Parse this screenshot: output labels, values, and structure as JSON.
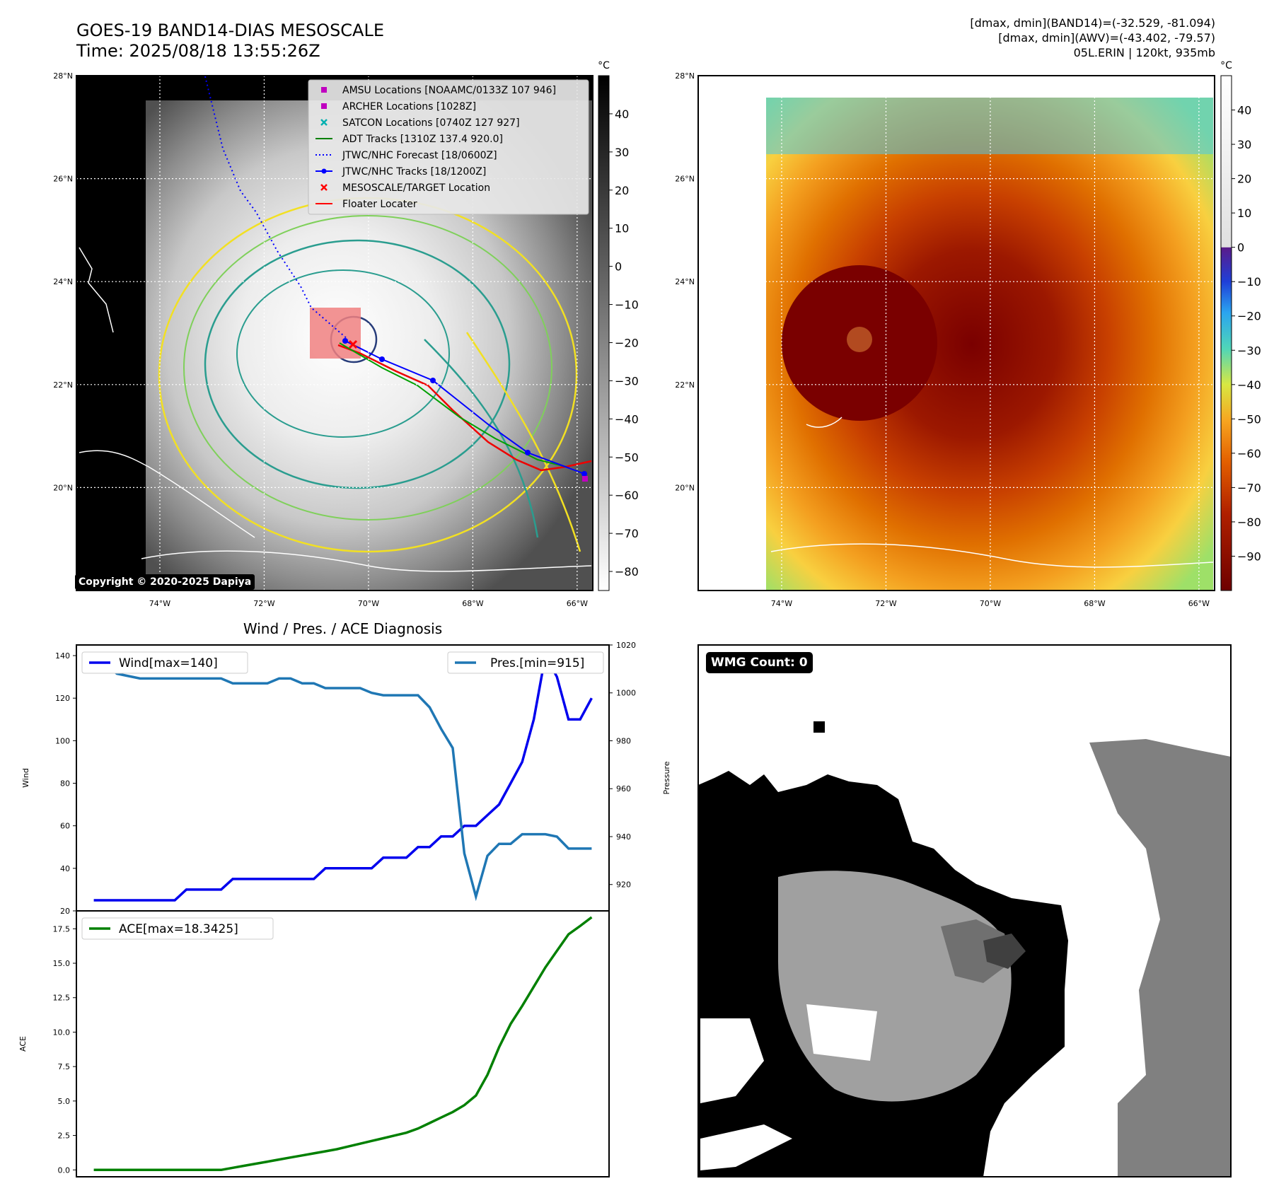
{
  "header": {
    "title_line1": "GOES-19 BAND14-DIAS MESOSCALE",
    "title_line2": "Time: 2025/08/18 13:55:26Z",
    "info_line1": "[dmax, dmin](BAND14)=(-32.529, -81.094)",
    "info_line2": "[dmax, dmin](AWV)=(-43.402, -79.57)",
    "info_line3": "05L.ERIN | 120kt, 935mb"
  },
  "copyright": "Copyright © 2020-2025 Dapiya",
  "wmg_label": "WMG Count: 0",
  "map_axes": {
    "lat_labels": [
      "28°N",
      "26°N",
      "24°N",
      "22°N",
      "20°N"
    ],
    "lat_values": [
      28,
      26,
      24,
      22,
      20
    ],
    "lon_labels": [
      "74°W",
      "72°W",
      "70°W",
      "68°W",
      "66°W"
    ],
    "lon_values": [
      -74,
      -72,
      -70,
      -68,
      -66
    ],
    "lon_range": [
      -75.6,
      -65.7
    ],
    "lat_range": [
      18.0,
      28.0
    ]
  },
  "colorbar_left": {
    "unit": "°C",
    "ticks": [
      40,
      30,
      20,
      10,
      0,
      -10,
      -20,
      -30,
      -40,
      -50,
      -60,
      -70,
      -80
    ],
    "range": [
      -85,
      50
    ]
  },
  "colorbar_right": {
    "unit": "°C",
    "ticks": [
      40,
      30,
      20,
      10,
      0,
      -10,
      -20,
      -30,
      -40,
      -50,
      -60,
      -70,
      -80,
      -90
    ],
    "range": [
      -100,
      50
    ]
  },
  "legend_map": [
    {
      "label": "AMSU Locations [NOAAMC/0133Z 107 946]",
      "kind": "square",
      "color": "#c000c0"
    },
    {
      "label": "ARCHER Locations [1028Z]",
      "kind": "square",
      "color": "#c000c0"
    },
    {
      "label": "SATCON Locations [0740Z 127 927]",
      "kind": "x",
      "color": "#00b0b0"
    },
    {
      "label": "ADT Tracks [1310Z 137.4 920.0]",
      "kind": "line",
      "color": "#008000"
    },
    {
      "label": "JTWC/NHC Forecast [18/0600Z]",
      "kind": "dotted",
      "color": "#0000ff"
    },
    {
      "label": "JTWC/NHC Tracks [18/1200Z]",
      "kind": "linedot",
      "color": "#0000ff"
    },
    {
      "label": "MESOSCALE/TARGET Location",
      "kind": "redx",
      "color": "#ff0000"
    },
    {
      "label": "Floater Locater",
      "kind": "line",
      "color": "#ff0000"
    }
  ],
  "colors": {
    "wind": "#0000ee",
    "pres": "#1f77b4",
    "ace": "#008000",
    "contour_teal": "#2a9d8f",
    "contour_yellow": "#f2e022"
  },
  "chart_data": [
    {
      "type": "line",
      "title": "Wind / Pres. / ACE Diagnosis",
      "ylabel": "Wind",
      "ylim": [
        20,
        145
      ],
      "yticks": [
        20,
        40,
        60,
        80,
        100,
        120,
        140
      ],
      "y2label": "Pressure",
      "y2lim": [
        909,
        1020
      ],
      "y2ticks": [
        920,
        940,
        960,
        980,
        1000,
        1020
      ],
      "series": [
        {
          "name": "Wind[max=140]",
          "axis": "left",
          "x": [
            0,
            1,
            2,
            3,
            4,
            5,
            6,
            7,
            8,
            9,
            10,
            11,
            12,
            13,
            14,
            15,
            16,
            17,
            18,
            19,
            20,
            21,
            22,
            23,
            24,
            25,
            26,
            27,
            28,
            29,
            30,
            31,
            32,
            33,
            34,
            35,
            36,
            37,
            38,
            39,
            40,
            41,
            42,
            43
          ],
          "values": [
            25,
            25,
            25,
            25,
            25,
            25,
            25,
            25,
            30,
            30,
            30,
            30,
            35,
            35,
            35,
            35,
            35,
            35,
            35,
            35,
            40,
            40,
            40,
            40,
            40,
            45,
            45,
            45,
            50,
            50,
            55,
            55,
            60,
            60,
            65,
            70,
            80,
            90,
            110,
            140,
            130,
            110,
            110,
            120
          ]
        },
        {
          "name": "Pres.[min=915]",
          "axis": "right",
          "x": [
            0,
            1,
            2,
            3,
            4,
            5,
            6,
            7,
            8,
            9,
            10,
            11,
            12,
            13,
            14,
            15,
            16,
            17,
            18,
            19,
            20,
            21,
            22,
            23,
            24,
            25,
            26,
            27,
            28,
            29,
            30,
            31,
            32,
            33,
            34,
            35,
            36,
            37,
            38,
            39,
            40,
            41,
            42,
            43
          ],
          "values": [
            1012,
            1012,
            1008,
            1007,
            1006,
            1006,
            1006,
            1006,
            1006,
            1006,
            1006,
            1006,
            1004,
            1004,
            1004,
            1004,
            1006,
            1006,
            1004,
            1004,
            1002,
            1002,
            1002,
            1002,
            1000,
            999,
            999,
            999,
            999,
            994,
            985,
            977,
            933,
            915,
            932,
            937,
            937,
            941,
            941,
            941,
            940,
            935,
            935,
            935
          ]
        }
      ]
    },
    {
      "type": "line",
      "ylabel": "ACE",
      "ylim": [
        -0.5,
        18.8
      ],
      "yticks": [
        0.0,
        2.5,
        5.0,
        7.5,
        10.0,
        12.5,
        15.0,
        17.5
      ],
      "series": [
        {
          "name": "ACE[max=18.3425]",
          "x": [
            0,
            1,
            2,
            3,
            4,
            5,
            6,
            7,
            8,
            9,
            10,
            11,
            12,
            13,
            14,
            15,
            16,
            17,
            18,
            19,
            20,
            21,
            22,
            23,
            24,
            25,
            26,
            27,
            28,
            29,
            30,
            31,
            32,
            33,
            34,
            35,
            36,
            37,
            38,
            39,
            40,
            41,
            42,
            43
          ],
          "values": [
            0,
            0,
            0,
            0,
            0,
            0,
            0,
            0,
            0,
            0,
            0,
            0,
            0.15,
            0.3,
            0.45,
            0.6,
            0.75,
            0.9,
            1.05,
            1.2,
            1.35,
            1.5,
            1.7,
            1.9,
            2.1,
            2.3,
            2.5,
            2.7,
            3.0,
            3.4,
            3.8,
            4.2,
            4.7,
            5.4,
            6.9,
            8.9,
            10.6,
            11.9,
            13.3,
            14.7,
            15.9,
            17.1,
            17.7,
            18.34
          ]
        }
      ]
    }
  ]
}
